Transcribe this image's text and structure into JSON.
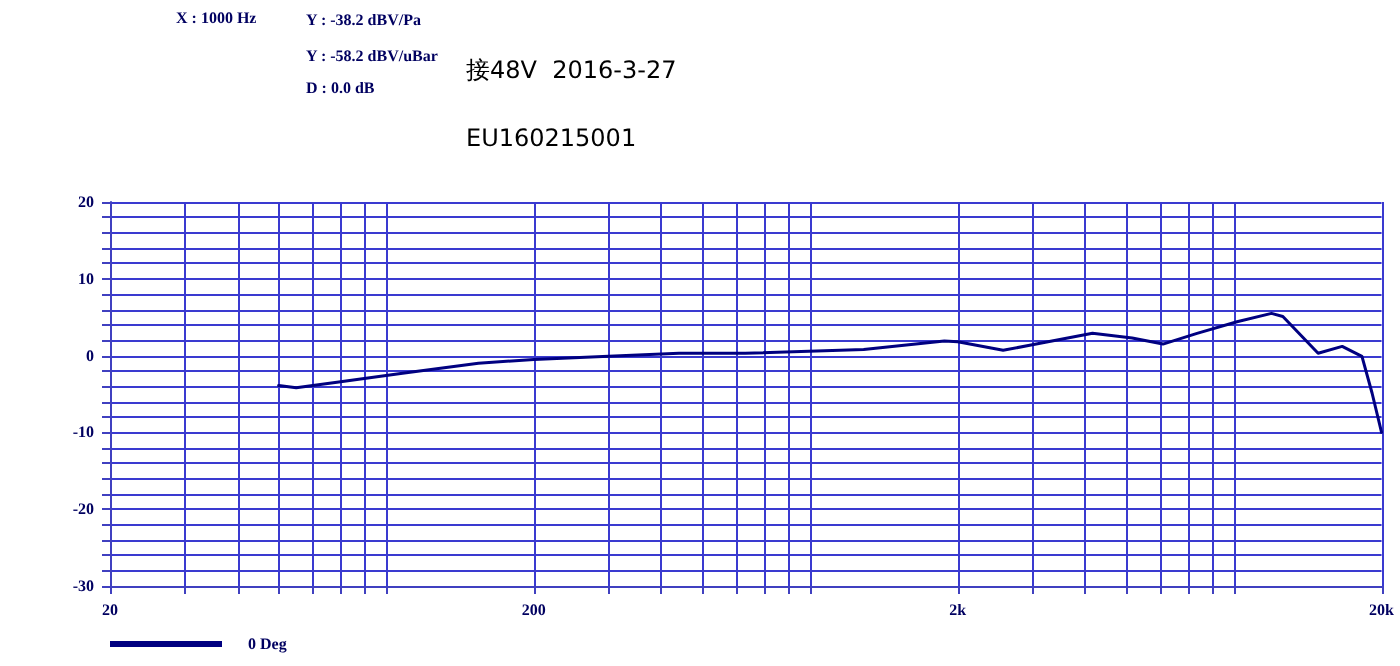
{
  "chart_data": {
    "type": "line",
    "log": "x",
    "grid": true,
    "legend": "bottom left",
    "marker": "none",
    "line_style": "solid",
    "annotations": [
      "X : 1000 Hz",
      "Y : -38.2 dBV/Pa",
      "Y : -58.2 dBV/uBar",
      "D : 0.0 dB",
      "接48V  2016-3-27",
      "EU160215001"
    ],
    "xlim": [
      20,
      20000
    ],
    "xticks": [
      20,
      {
        "value": 30,
        "label": null
      },
      {
        "value": 40,
        "label": null
      },
      {
        "value": 50,
        "label": null
      },
      {
        "value": 60,
        "label": null
      },
      {
        "value": 70,
        "label": null
      },
      {
        "value": 80,
        "label": null
      },
      {
        "value": 90,
        "label": null
      },
      200,
      {
        "value": 300,
        "label": null
      },
      {
        "value": 400,
        "label": null
      },
      {
        "value": 500,
        "label": null
      },
      {
        "value": 600,
        "label": null
      },
      {
        "value": 700,
        "label": null
      },
      {
        "value": 800,
        "label": null
      },
      {
        "value": 900,
        "label": null
      },
      {
        "value": 2000,
        "label": "2k"
      },
      {
        "value": 3000,
        "label": null
      },
      {
        "value": 4000,
        "label": null
      },
      {
        "value": 5000,
        "label": null
      },
      {
        "value": 6000,
        "label": null
      },
      {
        "value": 7000,
        "label": null
      },
      {
        "value": 8000,
        "label": null
      },
      {
        "value": 9000,
        "label": null
      },
      {
        "value": 20000,
        "label": "20k"
      }
    ],
    "ylim": [
      -30,
      20
    ],
    "yticks": [
      -30,
      {
        "value": -28,
        "label": null
      },
      {
        "value": -26,
        "label": null
      },
      {
        "value": -24,
        "label": null
      },
      {
        "value": -22,
        "label": null
      },
      -20,
      {
        "value": -18,
        "label": null
      },
      {
        "value": -16,
        "label": null
      },
      {
        "value": -14,
        "label": null
      },
      {
        "value": -12,
        "label": null
      },
      -10,
      {
        "value": -8,
        "label": null
      },
      {
        "value": -6,
        "label": null
      },
      {
        "value": -4,
        "label": null
      },
      {
        "value": -2,
        "label": null
      },
      0,
      {
        "value": 2,
        "label": null
      },
      {
        "value": 4,
        "label": null
      },
      {
        "value": 6,
        "label": null
      },
      {
        "value": 8,
        "label": null
      },
      10,
      {
        "value": 12,
        "label": null
      },
      {
        "value": 14,
        "label": null
      },
      {
        "value": 16,
        "label": null
      },
      {
        "value": 18,
        "label": null
      },
      20
    ],
    "series": [
      {
        "name": "0 Deg",
        "color": "#000080",
        "x": [
          50,
          55,
          70,
          98,
          148,
          200,
          300,
          440,
          630,
          1200,
          1860,
          2000,
          2560,
          3000,
          4160,
          5160,
          6100,
          7340,
          9120,
          11000,
          11700,
          14170,
          16150,
          17980,
          19000,
          20000
        ],
        "values": [
          -3.9,
          -4.2,
          -3.4,
          -2.3,
          -1.0,
          -0.5,
          -0.1,
          0.3,
          0.3,
          0.8,
          1.9,
          1.8,
          0.7,
          1.4,
          2.9,
          2.3,
          1.5,
          2.9,
          4.4,
          5.5,
          5.1,
          0.3,
          1.2,
          -0.1,
          -4.9,
          -10
        ]
      }
    ]
  }
}
